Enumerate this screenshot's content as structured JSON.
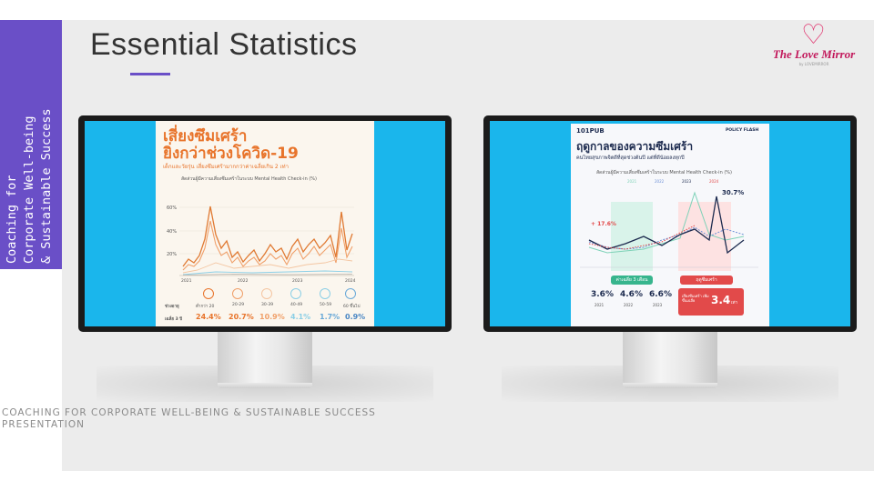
{
  "slide": {
    "title": "Essential Statistics",
    "side_text_lines": [
      "Coaching for",
      "Corporate Well-being",
      "& Sustainable Success"
    ],
    "footer_lines": [
      "COACHING FOR CORPORATE WELL-BEING & SUSTAINABLE SUCCESS",
      "PRESENTATION"
    ],
    "logo_text": "The Love Mirror",
    "logo_sub": "by LOVEMIRROR",
    "colors": {
      "accent": "#6a4fc7",
      "screen": "#1ab6ec",
      "logo": "#c2185b"
    }
  },
  "left_infographic": {
    "headline_1": "เสี่ยงซึมเศร้า",
    "headline_2": "ยิ่งกว่าช่วงโควิด-19",
    "subhead": "เด็กและวัยรุ่น เสี่ยงซึมเศร้ามากกว่าค่าเฉลี่ยเกิน 2 เท่า",
    "chart_caption": "สัดส่วนผู้มีความเสี่ยงซึมเศร้าในระบบ Mental Health Check-in (%)",
    "y_ticks": [
      "60%",
      "40%",
      "20%"
    ],
    "x_ticks": [
      "2021",
      "2022",
      "2023",
      "2024"
    ],
    "age_label": "ช่วงอายุ",
    "avg_label": "เฉลี่ย 3 ปี",
    "age_groups": [
      "ต่ำกว่า 20",
      "20-29",
      "30-39",
      "40-49",
      "50-59",
      "60 ขึ้นไป"
    ],
    "averages": [
      "24.4%",
      "20.7%",
      "10.9%",
      "4.1%",
      "1.7%",
      "0.9%"
    ]
  },
  "right_infographic": {
    "brand": "101PUB",
    "tag": "POLICY FLASH",
    "headline": "ฤดูกาลของความซึมเศร้า",
    "subhead": "คนไทยสุขภาพจิตดีที่สุดช่วงต้นปี แต่ที่ดีน้อยลงทุกปี",
    "chart_caption": "สัดส่วนผู้มีความเสี่ยงซึมเศร้าในระบบ Mental Health Check-in (%)",
    "legend": [
      "2021",
      "2022",
      "2023",
      "2024"
    ],
    "peak_label": "30.7%",
    "low_label": "+ 17.6%",
    "chip_green": "ค่าเฉลี่ย 3 เดือน",
    "chip_red": "ฤดูซึมเศร้า",
    "stats": [
      {
        "value": "3.6%",
        "year": "2021"
      },
      {
        "value": "4.6%",
        "year": "2022"
      },
      {
        "value": "6.6%",
        "year": "2023"
      }
    ],
    "callout_text": "เสี่ยงซึมเศร้า เพิ่มขึ้นเฉลี่ย",
    "callout_value": "3.4",
    "callout_unit": "เท่า"
  }
}
